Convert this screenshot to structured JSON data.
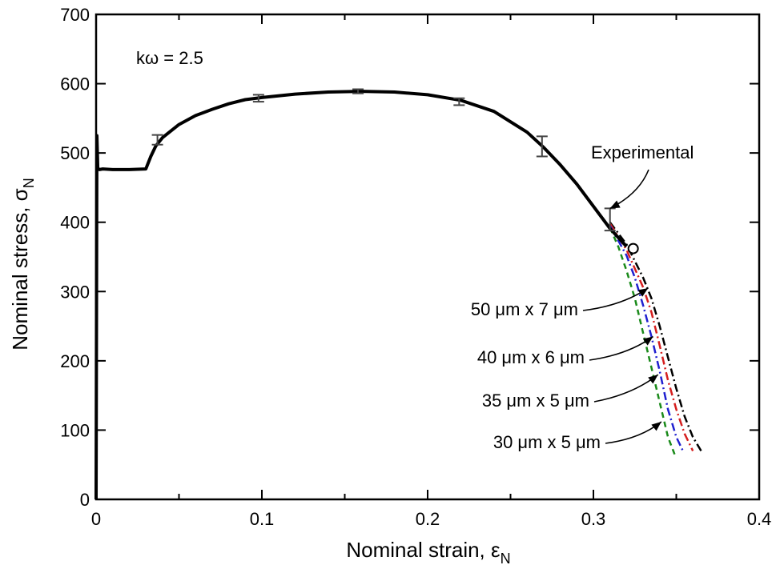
{
  "chart_data": {
    "type": "line",
    "xlabel": "Nominal strain, ε",
    "xlabel_sub": "N",
    "ylabel": "Nominal stress, σ",
    "ylabel_sub": "N",
    "xlim": [
      0,
      0.4
    ],
    "ylim": [
      0,
      700
    ],
    "x_ticks": [
      0,
      0.1,
      0.2,
      0.3,
      0.4
    ],
    "x_tick_labels": [
      "0",
      "0.1",
      "0.2",
      "0.3",
      "0.4"
    ],
    "y_ticks": [
      0,
      100,
      200,
      300,
      400,
      500,
      600,
      700
    ],
    "y_tick_labels": [
      "0",
      "100",
      "200",
      "300",
      "400",
      "500",
      "600",
      "700"
    ],
    "grid": false,
    "parameter_label": "kω = 2.5",
    "series": [
      {
        "name": "Experimental",
        "color": "#000000",
        "style": "solid",
        "x": [
          0,
          0.0005,
          0.001,
          0.002,
          0.004,
          0.01,
          0.02,
          0.03,
          0.033,
          0.036,
          0.04,
          0.05,
          0.06,
          0.07,
          0.08,
          0.09,
          0.1,
          0.12,
          0.14,
          0.16,
          0.18,
          0.2,
          0.22,
          0.24,
          0.26,
          0.27,
          0.28,
          0.29,
          0.3,
          0.31,
          0.315,
          0.32
        ],
        "y": [
          0,
          525,
          478,
          476,
          477,
          476,
          476,
          477,
          495,
          510,
          522,
          541,
          554,
          563,
          571,
          577,
          580,
          585,
          588,
          589,
          588,
          584,
          576,
          560,
          530,
          508,
          483,
          455,
          423,
          391,
          378,
          365
        ]
      },
      {
        "name": "50 μm x 7 μm",
        "color": "#000000",
        "style": "dash-dot",
        "x": [
          0.31,
          0.32,
          0.33,
          0.335,
          0.34,
          0.345,
          0.35,
          0.355,
          0.36,
          0.365
        ],
        "y": [
          400,
          368,
          320,
          290,
          250,
          205,
          160,
          120,
          90,
          70
        ]
      },
      {
        "name": "40 μm x 6 μm",
        "color": "#d62020",
        "style": "dash-dot",
        "x": [
          0.31,
          0.32,
          0.33,
          0.335,
          0.34,
          0.345,
          0.35,
          0.355,
          0.36
        ],
        "y": [
          398,
          360,
          306,
          270,
          222,
          172,
          130,
          95,
          70
        ]
      },
      {
        "name": "35 μm x 5 μm",
        "color": "#2020d0",
        "style": "dash-dot",
        "x": [
          0.31,
          0.32,
          0.325,
          0.33,
          0.335,
          0.34,
          0.345,
          0.35,
          0.354
        ],
        "y": [
          395,
          352,
          320,
          280,
          235,
          185,
          130,
          90,
          70
        ]
      },
      {
        "name": "30 μm x 5 μm",
        "color": "#1a8a1a",
        "style": "dashed",
        "x": [
          0.31,
          0.315,
          0.32,
          0.325,
          0.33,
          0.335,
          0.34,
          0.345,
          0.349
        ],
        "y": [
          392,
          365,
          330,
          290,
          240,
          190,
          140,
          90,
          65
        ]
      }
    ],
    "error_bars": [
      {
        "x": 0.037,
        "y": 519,
        "low": 512,
        "high": 526
      },
      {
        "x": 0.098,
        "y": 579,
        "low": 574,
        "high": 584
      },
      {
        "x": 0.158,
        "y": 589,
        "low": 586,
        "high": 592
      },
      {
        "x": 0.219,
        "y": 574,
        "low": 569,
        "high": 579
      },
      {
        "x": 0.269,
        "y": 510,
        "low": 495,
        "high": 524
      },
      {
        "x": 0.31,
        "y": 404,
        "low": 388,
        "high": 420
      }
    ],
    "failure_point": {
      "x": 0.324,
      "y": 362
    },
    "annotations": [
      {
        "text": "Experimental",
        "points_to": {
          "x": 0.31,
          "y": 420
        }
      },
      {
        "text": "50 μm x 7 μm",
        "points_to": {
          "x": 0.333,
          "y": 305
        }
      },
      {
        "text": "40 μm x 6 μm",
        "points_to": {
          "x": 0.336,
          "y": 235
        }
      },
      {
        "text": "35 μm x 5 μm",
        "points_to": {
          "x": 0.339,
          "y": 180
        }
      },
      {
        "text": "30 μm x 5 μm",
        "points_to": {
          "x": 0.341,
          "y": 112
        }
      }
    ]
  }
}
